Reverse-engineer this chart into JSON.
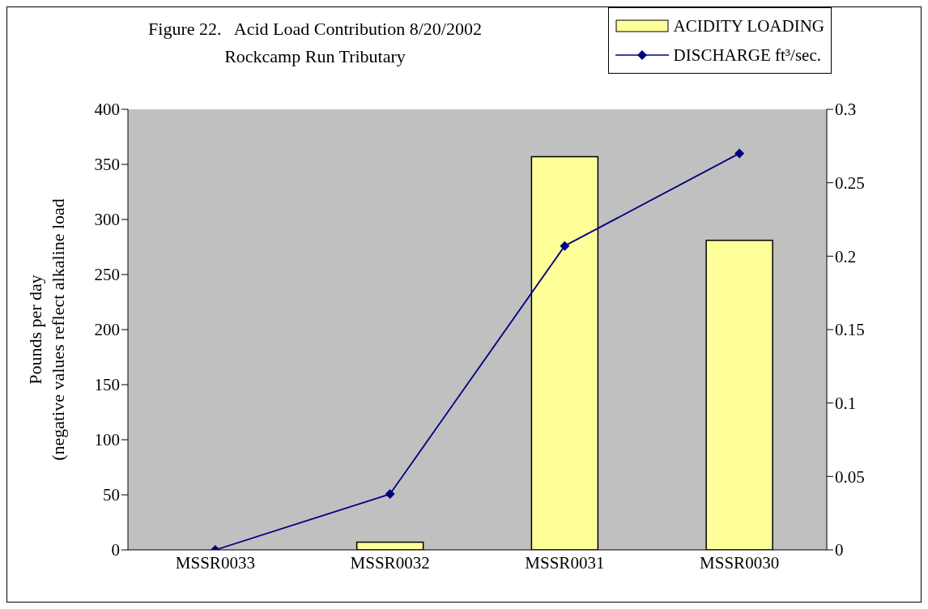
{
  "chart_data": {
    "type": "bar",
    "title": "Figure 22.   Acid Load Contribution 8/20/2002",
    "subtitle": "Rockcamp Run Tributary",
    "ylabel": "Pounds per day\n(negative values reflect alkaline load",
    "categories": [
      "MSSR0033",
      "MSSR0032",
      "MSSR0031",
      "MSSR0030"
    ],
    "series": [
      {
        "name": "ACIDITY LOADING",
        "color": "#ffff99",
        "values": [
          0,
          7,
          357,
          281
        ]
      },
      {
        "name": "DISCHARGE ft³/sec.",
        "type": "line",
        "axis": "y2",
        "color": "#000080",
        "values": [
          0,
          0.038,
          0.207,
          0.27
        ]
      }
    ],
    "ylim": [
      0,
      400
    ],
    "yticks": [
      0,
      50,
      100,
      150,
      200,
      250,
      300,
      350,
      400
    ],
    "y2lim": [
      0,
      0.3
    ],
    "y2ticks": [
      0,
      0.05,
      0.1,
      0.15,
      0.2,
      0.25,
      0.3
    ],
    "grid": false,
    "legend": "top right",
    "marker": "diamond",
    "line_style": "solid"
  }
}
